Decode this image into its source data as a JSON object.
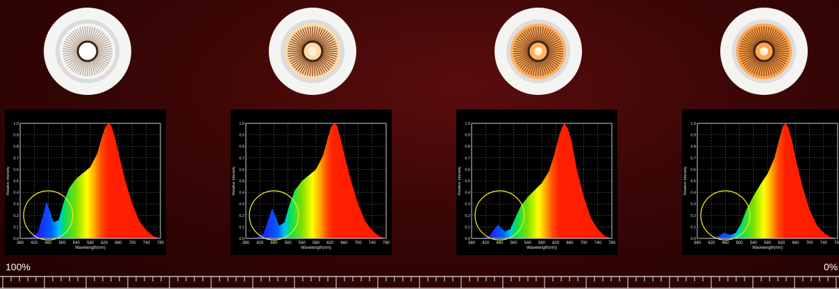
{
  "scale": {
    "left_label": "100%",
    "right_label": "0%"
  },
  "colors": {
    "background": "#3a0606",
    "highlight_circle": "#f2e81e"
  },
  "icons": [
    "downlight-lamp-icon",
    "downlight-lamp-icon",
    "downlight-lamp-icon",
    "downlight-lamp-icon"
  ],
  "chart_data": [
    {
      "type": "area",
      "ylabel": "Relative intensity",
      "xlabel": "Wavelength(nm)",
      "xticks": [
        380,
        420,
        460,
        500,
        540,
        580,
        620,
        660,
        700,
        740,
        780
      ],
      "yticks": [
        "0.0",
        "0.1",
        "0.2",
        "0.3",
        "0.4",
        "0.5",
        "0.6",
        "0.7",
        "0.8",
        "0.9",
        "1.0"
      ],
      "xlim": [
        380,
        780
      ],
      "ylim": [
        0,
        1
      ],
      "grid": true,
      "x": [
        380,
        410,
        430,
        445,
        455,
        465,
        475,
        490,
        505,
        520,
        540,
        560,
        580,
        600,
        615,
        625,
        632,
        640,
        650,
        660,
        680,
        700,
        720,
        740,
        760,
        780
      ],
      "y": [
        0,
        0.01,
        0.05,
        0.2,
        0.32,
        0.24,
        0.14,
        0.16,
        0.32,
        0.44,
        0.52,
        0.57,
        0.62,
        0.74,
        0.9,
        0.98,
        1.0,
        0.98,
        0.88,
        0.75,
        0.5,
        0.3,
        0.15,
        0.07,
        0.02,
        0
      ],
      "annotation": {
        "center_x": 460,
        "center_y": 0.2,
        "radius_x": 70
      }
    },
    {
      "type": "area",
      "ylabel": "Relative intensity",
      "xlabel": "Wavelength(nm)",
      "xticks": [
        380,
        420,
        460,
        500,
        540,
        580,
        620,
        660,
        700,
        740,
        780
      ],
      "yticks": [
        "0.0",
        "0.1",
        "0.2",
        "0.3",
        "0.4",
        "0.5",
        "0.6",
        "0.7",
        "0.8",
        "0.9",
        "1.0"
      ],
      "xlim": [
        380,
        780
      ],
      "ylim": [
        0,
        1
      ],
      "grid": true,
      "x": [
        380,
        410,
        430,
        445,
        455,
        465,
        475,
        490,
        505,
        520,
        540,
        560,
        580,
        600,
        615,
        625,
        632,
        640,
        650,
        660,
        680,
        700,
        720,
        740,
        760,
        780
      ],
      "y": [
        0,
        0.01,
        0.04,
        0.17,
        0.26,
        0.19,
        0.11,
        0.14,
        0.3,
        0.42,
        0.5,
        0.55,
        0.6,
        0.72,
        0.89,
        0.98,
        1.0,
        0.98,
        0.87,
        0.74,
        0.5,
        0.3,
        0.15,
        0.07,
        0.02,
        0
      ],
      "annotation": {
        "center_x": 460,
        "center_y": 0.2,
        "radius_x": 70
      }
    },
    {
      "type": "area",
      "ylabel": "Relative intensity",
      "xlabel": "Wavelength(nm)",
      "xticks": [
        380,
        420,
        460,
        500,
        540,
        580,
        620,
        660,
        700,
        740,
        780
      ],
      "yticks": [
        "0.0",
        "0.1",
        "0.2",
        "0.3",
        "0.4",
        "0.5",
        "0.6",
        "0.7",
        "0.8",
        "0.9",
        "1.0"
      ],
      "xlim": [
        380,
        780
      ],
      "ylim": [
        0,
        1
      ],
      "grid": true,
      "x": [
        380,
        410,
        430,
        445,
        455,
        465,
        475,
        490,
        505,
        520,
        540,
        560,
        580,
        600,
        615,
        630,
        640,
        645,
        655,
        665,
        680,
        700,
        720,
        740,
        760,
        780
      ],
      "y": [
        0,
        0.005,
        0.02,
        0.08,
        0.12,
        0.09,
        0.06,
        0.08,
        0.18,
        0.28,
        0.36,
        0.42,
        0.48,
        0.58,
        0.72,
        0.9,
        0.98,
        1.0,
        0.95,
        0.85,
        0.6,
        0.36,
        0.18,
        0.08,
        0.02,
        0
      ],
      "annotation": {
        "center_x": 460,
        "center_y": 0.2,
        "radius_x": 70
      }
    },
    {
      "type": "area",
      "ylabel": "Relative intensity",
      "xlabel": "Wavelength(nm)",
      "xticks": [
        380,
        420,
        460,
        500,
        540,
        580,
        620,
        660,
        700,
        740,
        780
      ],
      "yticks": [
        "0.0",
        "0.1",
        "0.2",
        "0.3",
        "0.4",
        "0.5",
        "0.6",
        "0.7",
        "0.8",
        "0.9",
        "1.0"
      ],
      "xlim": [
        380,
        780
      ],
      "ylim": [
        0,
        1
      ],
      "grid": true,
      "x": [
        380,
        410,
        430,
        445,
        455,
        465,
        475,
        490,
        505,
        520,
        540,
        560,
        580,
        600,
        615,
        625,
        632,
        640,
        650,
        660,
        680,
        700,
        720,
        740,
        760,
        780
      ],
      "y": [
        0,
        0.003,
        0.01,
        0.03,
        0.05,
        0.04,
        0.03,
        0.05,
        0.13,
        0.25,
        0.37,
        0.47,
        0.56,
        0.7,
        0.88,
        0.98,
        1.0,
        0.96,
        0.85,
        0.7,
        0.45,
        0.25,
        0.12,
        0.05,
        0.01,
        0
      ],
      "annotation": {
        "center_x": 460,
        "center_y": 0.2,
        "radius_x": 70
      }
    }
  ]
}
